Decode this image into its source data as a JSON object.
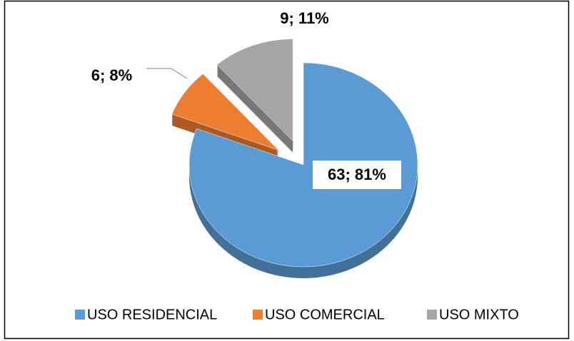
{
  "chart_data": {
    "type": "pie",
    "categories": [
      "USO RESIDENCIAL",
      "USO COMERCIAL",
      "USO MIXTO"
    ],
    "values": [
      63,
      6,
      9
    ],
    "value_labels": [
      "63; 81%",
      "6; 8%",
      "9; 11%"
    ],
    "colors": [
      "#5b9bd5",
      "#ed7d31",
      "#a5a5a5"
    ],
    "legend": "bottom"
  }
}
